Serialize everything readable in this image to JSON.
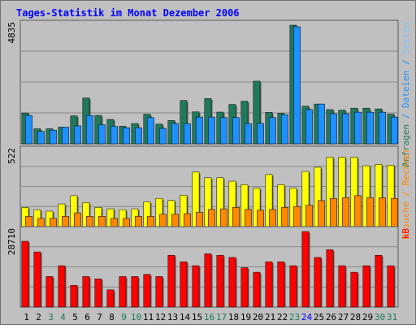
{
  "title": "Tages-Statistik im Monat Dezember 2006",
  "colors": {
    "frame": "#c0c0c0",
    "bg": "#c0c0c0",
    "border": "#5a5a5a",
    "title": "#0000ff",
    "anfragen": "#1f7a5c",
    "dateien": "#1e90ff",
    "seiten": "#ffff00",
    "besuche": "#ff8800",
    "rechner": "#ff8800",
    "kb": "#ff0000",
    "day_weekday": "#000000",
    "day_weekend": "#1f7a5c",
    "day_highlight": "#0000ff"
  },
  "chart_data": [
    {
      "type": "bar",
      "ymax_label": "4835",
      "ymax": 4835,
      "side_labels": [
        "Anfragen",
        "Dateien",
        "Seiten"
      ],
      "categories": [
        "1",
        "2",
        "3",
        "4",
        "5",
        "6",
        "7",
        "8",
        "9",
        "10",
        "11",
        "12",
        "13",
        "14",
        "15",
        "16",
        "17",
        "18",
        "19",
        "20",
        "21",
        "22",
        "23",
        "24",
        "25",
        "26",
        "27",
        "28",
        "29",
        "30",
        "31"
      ],
      "series": [
        {
          "name": "Anfragen",
          "values": [
            1256,
            612,
            612,
            680,
            1140,
            1869,
            1155,
            991,
            714,
            825,
            1206,
            803,
            948,
            1765,
            1299,
            1843,
            1291,
            1602,
            1735,
            2553,
            1282,
            1241,
            4835,
            1533,
            1619,
            1394,
            1372,
            1452,
            1452,
            1422,
            1206
          ]
        },
        {
          "name": "Dateien",
          "values": [
            1155,
            505,
            557,
            680,
            731,
            1155,
            777,
            714,
            657,
            657,
            1069,
            628,
            828,
            823,
            1090,
            1089,
            1069,
            1069,
            823,
            833,
            1069,
            1190,
            4772,
            1394,
            1619,
            1226,
            1226,
            1287,
            1287,
            1287,
            1089
          ]
        }
      ]
    },
    {
      "type": "bar",
      "ymax_label": "522",
      "ymax": 522,
      "side_labels": [
        "Rechner",
        "Besuche"
      ],
      "categories": [
        "1",
        "2",
        "3",
        "4",
        "5",
        "6",
        "7",
        "8",
        "9",
        "10",
        "11",
        "12",
        "13",
        "14",
        "15",
        "16",
        "17",
        "18",
        "19",
        "20",
        "21",
        "22",
        "23",
        "24",
        "25",
        "26",
        "27",
        "28",
        "29",
        "30",
        "31"
      ],
      "series": [
        {
          "name": "Seiten",
          "values": [
            133,
            117,
            107,
            157,
            214,
            167,
            133,
            123,
            117,
            123,
            171,
            195,
            181,
            217,
            377,
            338,
            338,
            314,
            290,
            266,
            360,
            290,
            266,
            381,
            410,
            480,
            480,
            480,
            421,
            430,
            425
          ]
        },
        {
          "name": "Besuche",
          "values": [
            71,
            57,
            57,
            71,
            95,
            71,
            71,
            57,
            57,
            71,
            71,
            85,
            85,
            90,
            100,
            119,
            123,
            133,
            119,
            114,
            119,
            133,
            138,
            147,
            180,
            195,
            200,
            214,
            200,
            200,
            195
          ]
        }
      ]
    },
    {
      "type": "bar",
      "ymax_label": "28710",
      "ymax": 28710,
      "side_labels": [
        "kB"
      ],
      "categories": [
        "1",
        "2",
        "3",
        "4",
        "5",
        "6",
        "7",
        "8",
        "9",
        "10",
        "11",
        "12",
        "13",
        "14",
        "15",
        "16",
        "17",
        "18",
        "19",
        "20",
        "21",
        "22",
        "23",
        "24",
        "25",
        "26",
        "27",
        "28",
        "29",
        "30",
        "31"
      ],
      "series": [
        {
          "name": "kB",
          "values": [
            25000,
            20950,
            11590,
            15720,
            8240,
            11590,
            10720,
            6570,
            11590,
            11590,
            12420,
            11590,
            19690,
            17210,
            15720,
            20230,
            19690,
            18860,
            14960,
            13240,
            17210,
            17210,
            15720,
            28710,
            18860,
            21770,
            15720,
            13240,
            15720,
            19690,
            15720
          ]
        }
      ]
    }
  ],
  "day_colors": [
    "wd",
    "wd",
    "we",
    "we",
    "wd",
    "wd",
    "wd",
    "wd",
    "we",
    "we",
    "wd",
    "wd",
    "wd",
    "wd",
    "wd",
    "we",
    "we",
    "wd",
    "wd",
    "wd",
    "wd",
    "wd",
    "we",
    "hi",
    "wd",
    "wd",
    "wd",
    "wd",
    "wd",
    "we",
    "we"
  ]
}
